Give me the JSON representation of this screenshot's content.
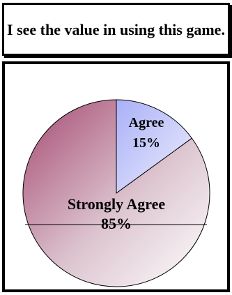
{
  "chart_data": {
    "type": "pie",
    "title": "I see the value in using this game.",
    "slices": [
      {
        "label": "Agree",
        "value": 15,
        "value_label": "15%",
        "color": "#b0b6f5"
      },
      {
        "label": "Strongly Agree",
        "value": 85,
        "value_label": "85%",
        "color": "#b06080"
      }
    ],
    "legend": "none",
    "data_labels": "inside"
  }
}
